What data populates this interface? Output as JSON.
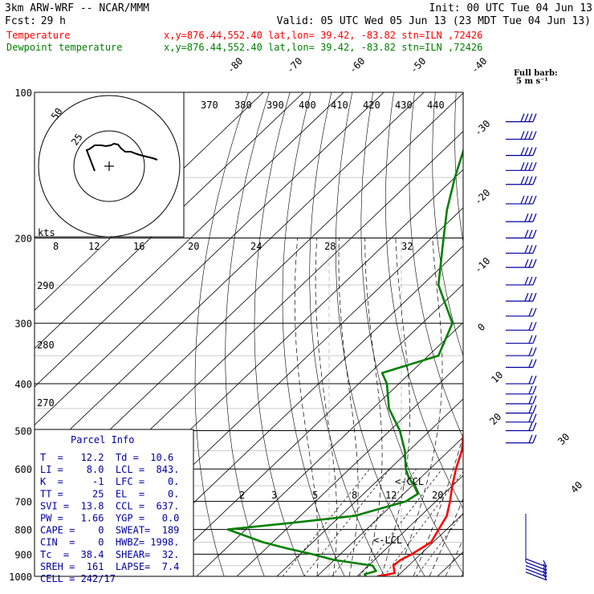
{
  "header": {
    "model": "3km ARW-WRF -- NCAR/MMM",
    "init": "Init: 00 UTC Tue 04 Jun 13",
    "fcst_label": "Fcst:",
    "fcst_value": "29 h",
    "valid": "Valid: 05 UTC Wed 05 Jun 13 (23 MDT Tue 04 Jun 13)",
    "temp_label": "Temperature",
    "temp_loc": "x,y=876.44,552.40   lat,lon= 39.42, -83.82  stn=ILN ,72426",
    "dew_label": "Dewpoint temperature",
    "dew_loc": "x,y=876.44,552.40   lat,lon= 39.42, -83.82  stn=ILN ,72426"
  },
  "barb_legend": {
    "line1": "Full barb:",
    "line2": "5 m s⁻¹"
  },
  "hodograph": {
    "units": "kts",
    "ring_labels": [
      "25",
      "50"
    ]
  },
  "parcel": {
    "title": "Parcel Info",
    "rows": [
      "T  =   12.2  Td =  10.6",
      "LI =    8.0  LCL =  843.",
      "K  =     -1  LFC =    0.",
      "TT =     25  EL  =    0.",
      "SVI =  13.8  CCL =  637.",
      "PW =   1.66  YGP =   0.0",
      "CAPE =    0  SWEAT=  189",
      "CIN  =    0  HWBZ= 1998.",
      "Tc  =  38.4  SHEAR=  32.",
      "SREH =  161  LAPSE=  7.4",
      "CELL = 242/17"
    ]
  },
  "annotations": {
    "ccl": "<-CCL",
    "lcl": "<-LCL"
  },
  "colors": {
    "temperature": "#ff0000",
    "dewpoint": "#008000",
    "barbs": "#0000a0",
    "grid": "#000000",
    "header_temp": "#ff0000",
    "header_dew": "#008000"
  },
  "chart_data": {
    "type": "line",
    "title": "3km ARW-WRF -- NCAR/MMM",
    "xlabel": "",
    "ylabel": "",
    "pressure_ticks": [
      "100",
      "200",
      "300",
      "400",
      "500",
      "600",
      "700",
      "800",
      "900",
      "1000"
    ],
    "temp_ticks": [
      "-80",
      "-70",
      "-60",
      "-50",
      "-40",
      "-30",
      "-20",
      "-10",
      "0",
      "10",
      "20",
      "30",
      "40"
    ],
    "theta_ticks": [
      "370",
      "380",
      "390",
      "400",
      "410",
      "420",
      "430",
      "440"
    ],
    "theta_ticks_low": [
      "290",
      "280",
      "270"
    ],
    "mixing_ratio_ticks": [
      "2",
      "3",
      "5",
      "8",
      "12",
      "20"
    ],
    "hodo_speed_ticks": [
      "8",
      "12",
      "16",
      "20",
      "24",
      "28",
      "32"
    ],
    "series": [
      {
        "name": "Temperature",
        "points": [
          [
            1000,
            15.0
          ],
          [
            985,
            18.5
          ],
          [
            950,
            16.2
          ],
          [
            925,
            16.5
          ],
          [
            900,
            17.8
          ],
          [
            850,
            19.5
          ],
          [
            800,
            18.0
          ],
          [
            750,
            16.5
          ],
          [
            700,
            13.5
          ],
          [
            650,
            10.0
          ],
          [
            600,
            6.5
          ],
          [
            550,
            3.2
          ],
          [
            500,
            -1.5
          ],
          [
            450,
            -6.0
          ],
          [
            400,
            -11.5
          ],
          [
            350,
            -16.8
          ],
          [
            300,
            -23.5
          ],
          [
            250,
            -32.5
          ],
          [
            200,
            -43.5
          ],
          [
            175,
            -48.5
          ],
          [
            150,
            -52.0
          ],
          [
            125,
            -57.5
          ],
          [
            100,
            -66.0
          ]
        ]
      },
      {
        "name": "Dewpoint temperature",
        "points": [
          [
            1000,
            12.2
          ],
          [
            990,
            11.3
          ],
          [
            975,
            13.3
          ],
          [
            950,
            11.0
          ],
          [
            925,
            0.0
          ],
          [
            900,
            -7.0
          ],
          [
            875,
            -15.0
          ],
          [
            850,
            -22.5
          ],
          [
            800,
            -34.5
          ],
          [
            775,
            -20.0
          ],
          [
            750,
            -6.5
          ],
          [
            700,
            2.5
          ],
          [
            675,
            3.5
          ],
          [
            650,
            0.5
          ],
          [
            625,
            -3.0
          ],
          [
            600,
            -6.0
          ],
          [
            550,
            -11.0
          ],
          [
            500,
            -17.5
          ],
          [
            450,
            -26.0
          ],
          [
            400,
            -33.0
          ],
          [
            380,
            -37.0
          ],
          [
            350,
            -27.5
          ],
          [
            300,
            -32.5
          ],
          [
            250,
            -46.0
          ],
          [
            200,
            -57.0
          ],
          [
            175,
            -63.5
          ],
          [
            150,
            -70.0
          ],
          [
            125,
            -77.0
          ],
          [
            100,
            -84.5
          ]
        ]
      }
    ],
    "wind_barbs": [
      {
        "p": 115,
        "spd": 40
      },
      {
        "p": 125,
        "spd": 38
      },
      {
        "p": 135,
        "spd": 38
      },
      {
        "p": 145,
        "spd": 40
      },
      {
        "p": 155,
        "spd": 38
      },
      {
        "p": 170,
        "spd": 35
      },
      {
        "p": 185,
        "spd": 33
      },
      {
        "p": 200,
        "spd": 30
      },
      {
        "p": 215,
        "spd": 30
      },
      {
        "p": 230,
        "spd": 28
      },
      {
        "p": 250,
        "spd": 27
      },
      {
        "p": 270,
        "spd": 25
      },
      {
        "p": 290,
        "spd": 24
      },
      {
        "p": 310,
        "spd": 23
      },
      {
        "p": 330,
        "spd": 23
      },
      {
        "p": 350,
        "spd": 22
      },
      {
        "p": 370,
        "spd": 22
      },
      {
        "p": 400,
        "spd": 20
      },
      {
        "p": 420,
        "spd": 20
      },
      {
        "p": 440,
        "spd": 20
      },
      {
        "p": 460,
        "spd": 18
      },
      {
        "p": 480,
        "spd": 18
      },
      {
        "p": 500,
        "spd": 17
      },
      {
        "p": 530,
        "spd": 17
      }
    ],
    "low_barbs": [
      {
        "p": 920,
        "spd": 17
      },
      {
        "p": 935,
        "spd": 17
      },
      {
        "p": 950,
        "spd": 17
      },
      {
        "p": 965,
        "spd": 15
      },
      {
        "p": 980,
        "spd": 12
      }
    ],
    "hodograph_path": [
      [
        0,
        0
      ],
      [
        3,
        -1
      ],
      [
        10,
        -6
      ],
      [
        18,
        -6
      ],
      [
        24,
        -5
      ],
      [
        30,
        -6
      ],
      [
        34,
        -8
      ],
      [
        39,
        -7
      ],
      [
        43,
        -2
      ],
      [
        48,
        2
      ],
      [
        55,
        2
      ],
      [
        60,
        4
      ],
      [
        66,
        6
      ],
      [
        74,
        8
      ],
      [
        82,
        10
      ],
      [
        88,
        12
      ]
    ],
    "hodo_start": [
      -18,
      6
    ],
    "legend": "top-left"
  }
}
